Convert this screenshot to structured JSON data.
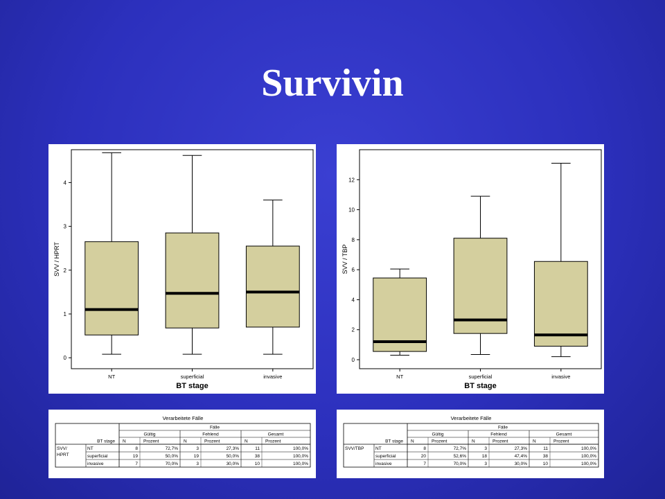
{
  "slide": {
    "title": "Survivin",
    "background": "#2e33c4"
  },
  "colors": {
    "box_fill": "#d4cf9e",
    "median": "#000000",
    "ink": "#000000"
  },
  "chart_data": [
    {
      "type": "box",
      "ylabel": "SVV / HPRT",
      "xlabel": "BT stage",
      "yticks": [
        0,
        1,
        2,
        3,
        4
      ],
      "ylim": [
        -0.25,
        4.75
      ],
      "categories": [
        "NT",
        "superficial",
        "invasive"
      ],
      "boxes": [
        {
          "category": "NT",
          "min": 0.08,
          "q1": 0.52,
          "median": 1.1,
          "q3": 2.65,
          "max": 4.68
        },
        {
          "category": "superficial",
          "min": 0.08,
          "q1": 0.68,
          "median": 1.47,
          "q3": 2.85,
          "max": 4.62
        },
        {
          "category": "invasive",
          "min": 0.08,
          "q1": 0.7,
          "median": 1.5,
          "q3": 2.55,
          "max": 3.6
        }
      ]
    },
    {
      "type": "box",
      "ylabel": "SVV / TBP",
      "xlabel": "BT stage",
      "yticks": [
        0,
        2,
        4,
        6,
        8,
        10,
        12
      ],
      "ylim": [
        -0.6,
        14.0
      ],
      "categories": [
        "NT",
        "superficial",
        "invasive"
      ],
      "boxes": [
        {
          "category": "NT",
          "min": 0.3,
          "q1": 0.55,
          "median": 1.2,
          "q3": 5.45,
          "max": 6.05
        },
        {
          "category": "superficial",
          "min": 0.35,
          "q1": 1.75,
          "median": 2.65,
          "q3": 8.1,
          "max": 10.9
        },
        {
          "category": "invasive",
          "min": 0.2,
          "q1": 0.9,
          "median": 1.65,
          "q3": 6.55,
          "max": 13.1
        }
      ]
    }
  ],
  "tables": [
    {
      "title": "Verarbeitete Fälle",
      "group_header": "Fälle",
      "row_var_header": "BT stage",
      "col_groups": [
        "Gültig",
        "Fehlend",
        "Gesamt"
      ],
      "col_sub": [
        "N",
        "Prozent"
      ],
      "row_var": [
        "SVV/",
        "HPRT"
      ],
      "rows": [
        {
          "label": "NT",
          "cells": [
            "8",
            "72,7%",
            "3",
            "27,3%",
            "11",
            "100,0%"
          ]
        },
        {
          "label": "superficial",
          "cells": [
            "19",
            "50,0%",
            "19",
            "50,0%",
            "38",
            "100,0%"
          ]
        },
        {
          "label": "invasive",
          "cells": [
            "7",
            "70,0%",
            "3",
            "30,0%",
            "10",
            "100,0%"
          ]
        }
      ]
    },
    {
      "title": "Verarbeitete Fälle",
      "group_header": "Fälle",
      "row_var_header": "BT stage",
      "col_groups": [
        "Gültig",
        "Fehlend",
        "Gesamt"
      ],
      "col_sub": [
        "N",
        "Prozent"
      ],
      "row_var": [
        "SVV/TBP",
        ""
      ],
      "rows": [
        {
          "label": "NT",
          "cells": [
            "8",
            "72,7%",
            "3",
            "27,3%",
            "11",
            "100,0%"
          ]
        },
        {
          "label": "superficial",
          "cells": [
            "20",
            "52,6%",
            "18",
            "47,4%",
            "38",
            "100,0%"
          ]
        },
        {
          "label": "invasive",
          "cells": [
            "7",
            "70,0%",
            "3",
            "30,0%",
            "10",
            "100,0%"
          ]
        }
      ]
    }
  ]
}
